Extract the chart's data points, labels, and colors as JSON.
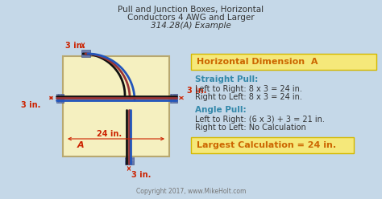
{
  "title_line1": "Pull and Junction Boxes, Horizontal",
  "title_line2": "Conductors 4 AWG and Larger",
  "title_line3": "314.28(A) Example",
  "bg_color": "#c5d8e8",
  "box_bg": "#f5f0c0",
  "box_border": "#b8a870",
  "highlight_yellow": "#f5e87a",
  "dim_color": "#cc2200",
  "text_dark": "#333333",
  "teal_color": "#3388aa",
  "orange_color": "#cc6600",
  "connector_color": "#6677aa",
  "copyright": "Copyright 2017, www.MikeHolt.com",
  "horiz_dim_label": "Horizontal Dimension  A",
  "straight_pull_label": "Straight Pull:",
  "straight_l2r": "Left to Right: 8 x 3 = 24 in.",
  "straight_r2l": "Right to Left: 8 x 3 = 24 in.",
  "angle_pull_label": "Angle Pull:",
  "angle_l2r": "Left to Right: (6 x 3) + 3 = 21 in.",
  "angle_r2l": "Right to Left: No Calculation",
  "largest_calc": "Largest Calculation = 24 in.",
  "dim_3in_top": "3 in.",
  "dim_3in_right": "3 in.",
  "dim_3in_left": "3 in.",
  "dim_3in_bottom": "3 in.",
  "dim_24in": "24 in.",
  "label_A": "A"
}
